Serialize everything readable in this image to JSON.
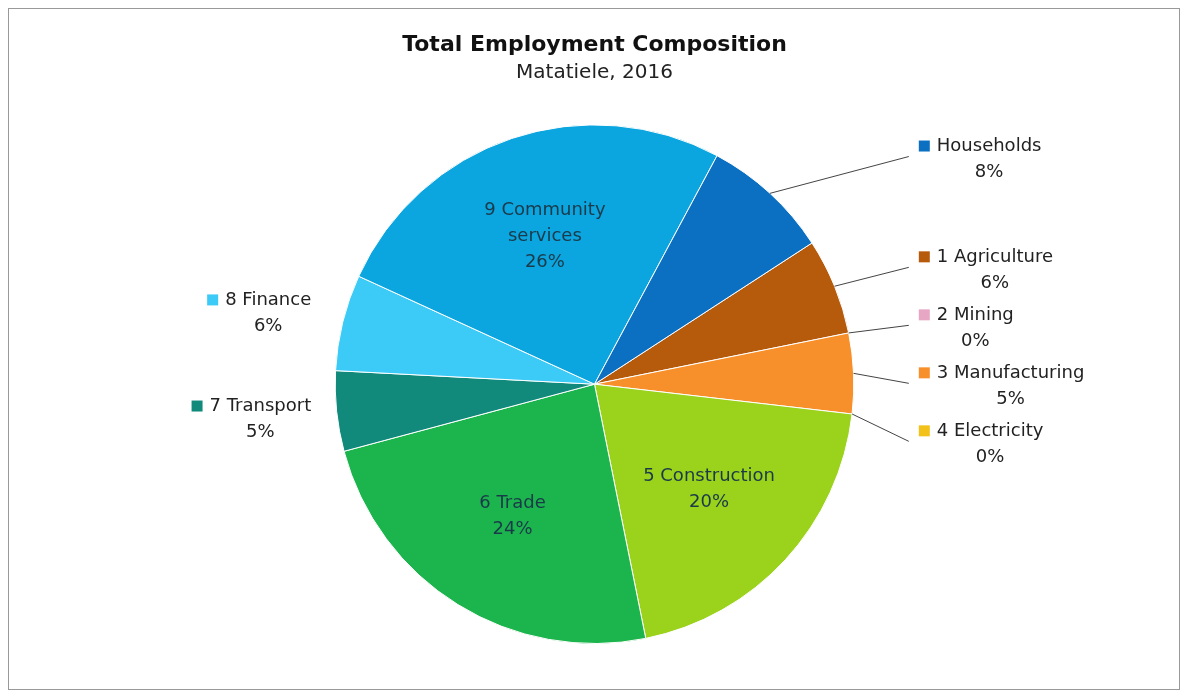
{
  "chart_data": {
    "type": "pie",
    "title": "Total Employment Composition",
    "subtitle": "Matatiele, 2016",
    "categories": [
      "1 Agriculture",
      "2 Mining",
      "3 Manufacturing",
      "4 Electricity",
      "5 Construction",
      "6 Trade",
      "7 Transport",
      "8 Finance",
      "9 Community services",
      "Households"
    ],
    "values": [
      6,
      0,
      5,
      0,
      20,
      24,
      5,
      6,
      26,
      8
    ],
    "colors": [
      "#b65a0c",
      "#e6a6c4",
      "#f7902a",
      "#f2c21a",
      "#9ad21c",
      "#1cb44c",
      "#118a7c",
      "#3ccaf6",
      "#0ba5df",
      "#0b6fc2"
    ],
    "value_labels": [
      "6%",
      "0%",
      "5%",
      "0%",
      "20%",
      "24%",
      "5%",
      "6%",
      "26%",
      "8%"
    ],
    "legend": "right"
  }
}
